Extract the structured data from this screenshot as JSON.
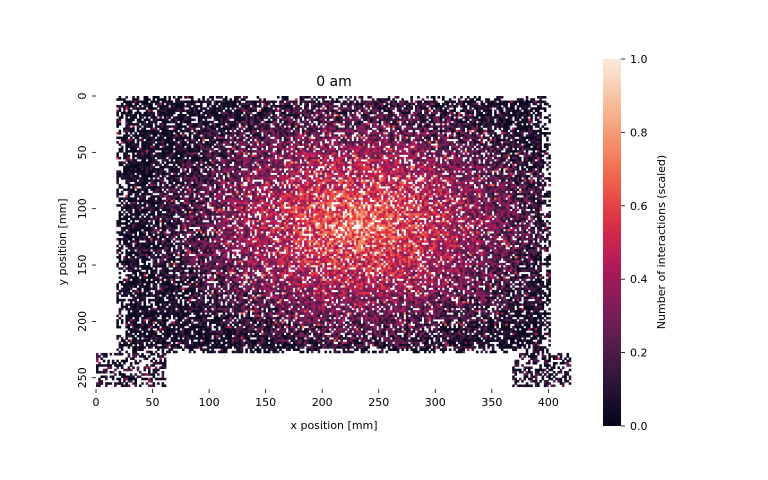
{
  "chart_data": {
    "type": "heatmap",
    "title": "0 am",
    "xlabel": "x position [mm]",
    "ylabel": "y position [mm]",
    "colorbar_label": "Number of interactions (scaled)",
    "xlim": [
      0,
      420
    ],
    "ylim": [
      260,
      0
    ],
    "x_ticks": [
      "0",
      "50",
      "100",
      "150",
      "200",
      "250",
      "300",
      "350",
      "400"
    ],
    "y_ticks": [
      "0",
      "50",
      "100",
      "150",
      "200",
      "250"
    ],
    "colorbar_ticks": [
      "0.0",
      "0.2",
      "0.4",
      "0.6",
      "0.8",
      "1.0"
    ],
    "value_range": [
      0,
      1
    ],
    "colormap": [
      "#03051a",
      "#36193e",
      "#701f57",
      "#ad1759",
      "#e13342",
      "#f37651",
      "#f6b48f",
      "#faebdd"
    ],
    "grid": false,
    "coverage": {
      "main_region": {
        "x": [
          18,
          400
        ],
        "y": [
          0,
          227
        ]
      },
      "left_tab": {
        "x": [
          0,
          60
        ],
        "y": [
          227,
          257
        ]
      },
      "right_tab": {
        "x": [
          368,
          420
        ],
        "y": [
          227,
          257
        ]
      }
    },
    "peak_region": {
      "x": [
        120,
        340
      ],
      "y": [
        40,
        185
      ]
    }
  }
}
